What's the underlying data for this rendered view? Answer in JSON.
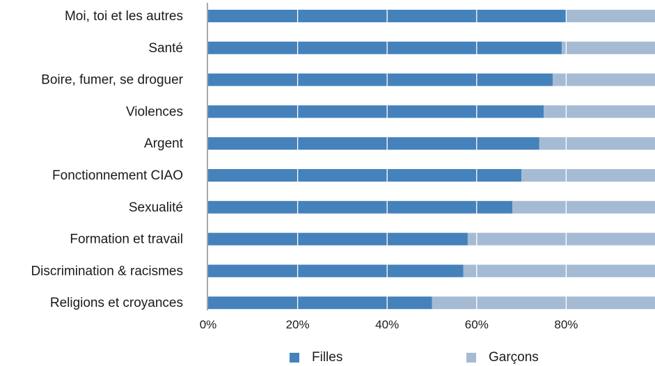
{
  "colors": {
    "filles": "#4582bb",
    "garcons": "#a5bbd4",
    "axis": "#8c8c8c",
    "grid": "#ffffff"
  },
  "chart_data": {
    "type": "bar",
    "orientation": "horizontal",
    "stacked": true,
    "categories": [
      "Moi, toi et les autres",
      "Santé",
      "Boire, fumer, se droguer",
      "Violences",
      "Argent",
      "Fonctionnement CIAO",
      "Sexualité",
      "Formation et travail",
      "Discrimination & racismes",
      "Religions et croyances"
    ],
    "series": [
      {
        "name": "Filles",
        "values": [
          80,
          79,
          77,
          75,
          74,
          70,
          68,
          58,
          57,
          50
        ]
      },
      {
        "name": "Garçons",
        "values": [
          20,
          21,
          23,
          25,
          26,
          30,
          32,
          42,
          43,
          50
        ]
      }
    ],
    "xlim": [
      0,
      100
    ],
    "xticks": [
      0,
      20,
      40,
      60,
      80
    ],
    "xtick_labels": [
      "0%",
      "20%",
      "40%",
      "60%",
      "80%"
    ],
    "grid": true,
    "legend_position": "bottom"
  }
}
